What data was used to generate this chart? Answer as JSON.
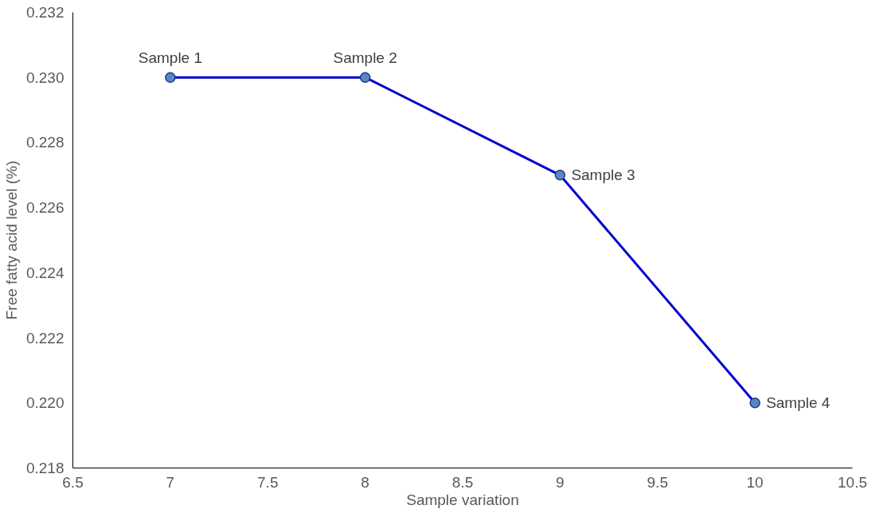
{
  "chart_data": {
    "type": "line",
    "xlabel": "Sample variation",
    "ylabel": "Free fatty acid level (%)",
    "x": [
      7,
      8,
      9,
      10
    ],
    "series": [
      {
        "color": "#0000cc",
        "values": [
          0.23,
          0.23,
          0.227,
          0.22
        ]
      }
    ],
    "marker": "circle",
    "line_style": "solid",
    "grid": false,
    "xlim": [
      6.5,
      10.5
    ],
    "xticks": [
      6.5,
      7,
      7.5,
      8,
      8.5,
      9,
      9.5,
      10,
      10.5
    ],
    "ylim": [
      0.218,
      0.232
    ],
    "yticks": [
      0.218,
      {
        "value": 0.22,
        "label": "0.220"
      },
      0.222,
      0.224,
      0.226,
      0.228,
      {
        "value": 0.23,
        "label": "0.230"
      },
      0.232
    ],
    "annotations": [
      {
        "text": "Sample 1",
        "x": 7,
        "y": 0.23
      },
      {
        "text": "Sample 2",
        "x": 8,
        "y": 0.23
      },
      {
        "text": "Sample 3",
        "x": 9,
        "y": 0.227
      },
      {
        "text": "Sample 4",
        "x": 10,
        "y": 0.22
      }
    ]
  }
}
